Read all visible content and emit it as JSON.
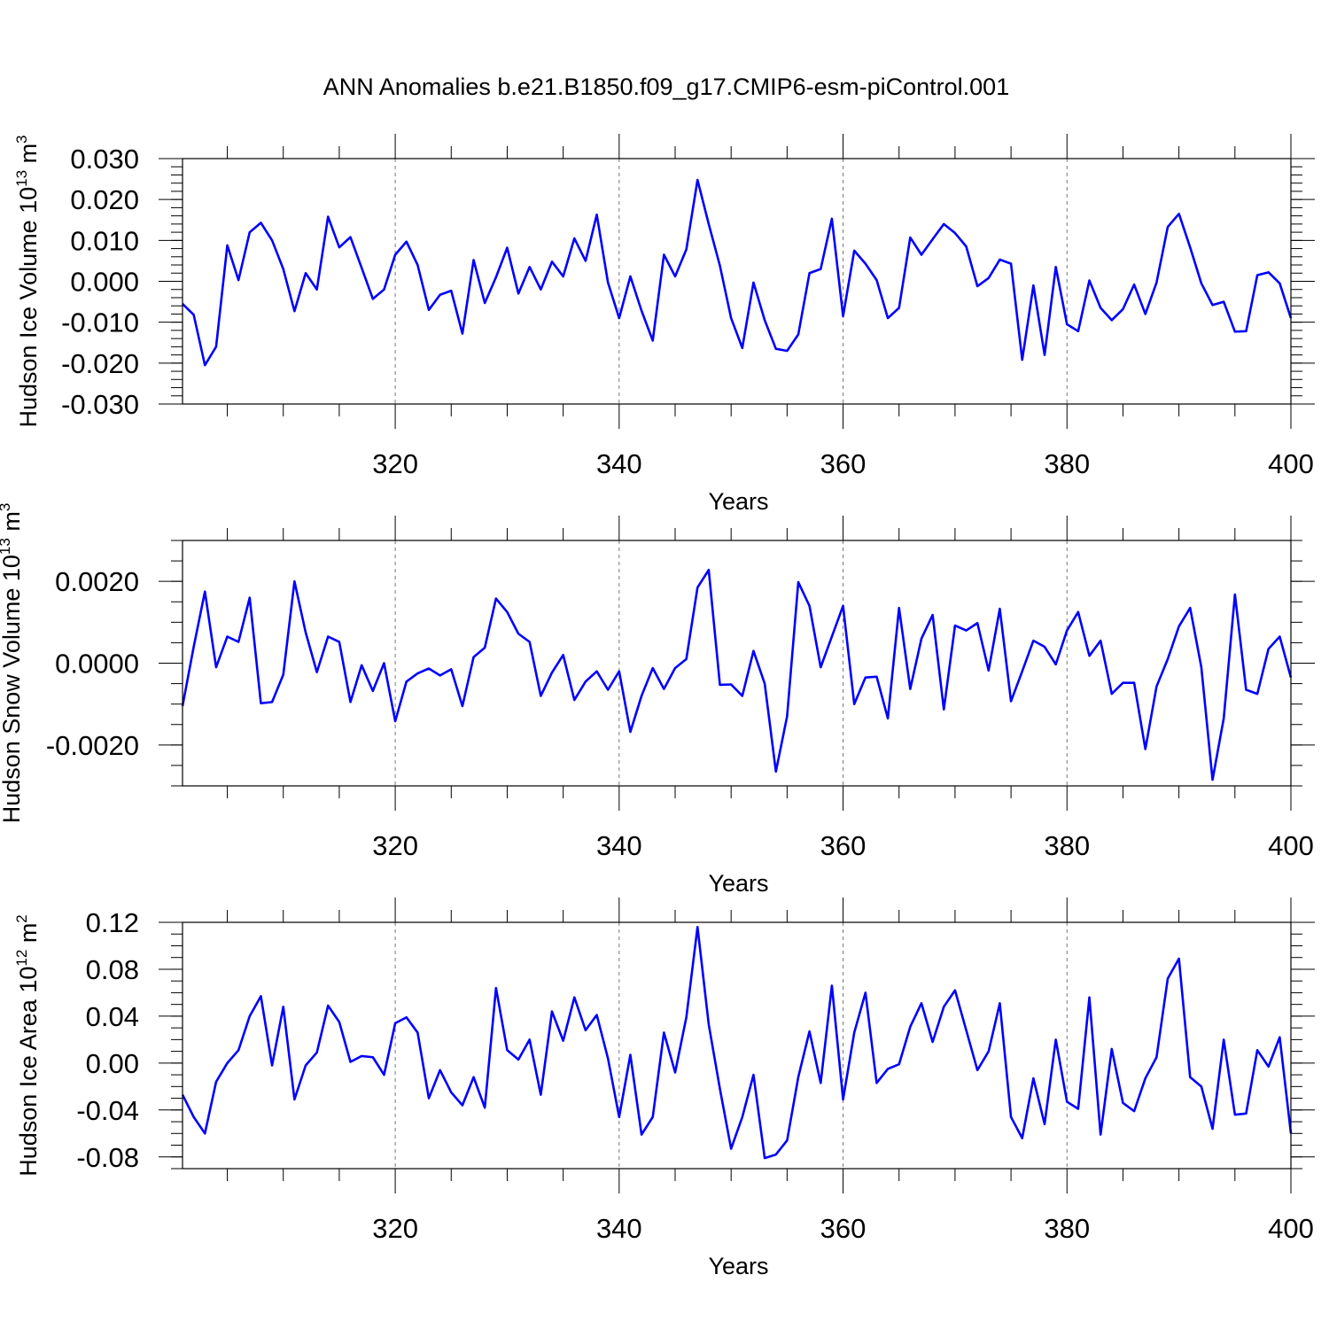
{
  "title": "ANN Anomalies b.e21.B1850.f09_g17.CMIP6-esm-piControl.001",
  "line_color": "#0000ff",
  "chart_data": [
    {
      "type": "line",
      "ylabel_main": "Hudson Ice Volume 10",
      "ylabel_exp": "13",
      "ylabel_unit": " m",
      "ylabel_unit_exp": "3",
      "xlabel": "Years",
      "xlim": [
        301,
        400
      ],
      "ylim": [
        -0.03,
        0.03
      ],
      "yticks": [
        -0.03,
        -0.02,
        -0.01,
        0.0,
        0.01,
        0.02,
        0.03
      ],
      "ytick_labels": [
        "-0.030",
        "-0.020",
        "-0.010",
        "0.000",
        "0.010",
        "0.020",
        "0.030"
      ],
      "yminor": 0.002,
      "xticks": [
        320,
        340,
        360,
        380,
        400
      ],
      "xtick_labels": [
        "320",
        "340",
        "360",
        "380",
        "400"
      ],
      "x_start": 301,
      "values": [
        -0.0055,
        -0.0082,
        -0.0205,
        -0.016,
        0.0088,
        0.0003,
        0.012,
        0.0143,
        0.01,
        0.003,
        -0.0073,
        0.002,
        -0.002,
        0.0158,
        0.0083,
        0.0108,
        0.0033,
        -0.0043,
        -0.002,
        0.0065,
        0.0097,
        0.004,
        -0.007,
        -0.0033,
        -0.0023,
        -0.0128,
        0.0052,
        -0.0053,
        0.001,
        0.0082,
        -0.003,
        0.0035,
        -0.002,
        0.0048,
        0.0012,
        0.0105,
        0.005,
        0.0163,
        -0.0003,
        -0.009,
        0.0012,
        -0.0072,
        -0.0145,
        0.0065,
        0.0012,
        0.0078,
        0.0248,
        0.014,
        0.0038,
        -0.009,
        -0.0163,
        -0.0003,
        -0.0095,
        -0.0165,
        -0.017,
        -0.013,
        0.002,
        0.003,
        0.0153,
        -0.0085,
        0.0075,
        0.0043,
        0.0003,
        -0.009,
        -0.0065,
        0.0107,
        0.0065,
        0.0103,
        0.014,
        0.0118,
        0.0085,
        -0.0012,
        0.0008,
        0.0053,
        0.0043,
        -0.0192,
        -0.001,
        -0.018,
        0.0035,
        -0.0105,
        -0.0122,
        0.0002,
        -0.0065,
        -0.0095,
        -0.0068,
        -0.0008,
        -0.008,
        -0.0003,
        0.0133,
        0.0165,
        0.0083,
        -0.0005,
        -0.0058,
        -0.005,
        -0.0123,
        -0.0122,
        0.0015,
        0.0022,
        -0.0005,
        -0.009
      ]
    },
    {
      "type": "line",
      "ylabel_main": "Hudson Snow Volume 10",
      "ylabel_exp": "13",
      "ylabel_unit": " m",
      "ylabel_unit_exp": "3",
      "xlabel": "Years",
      "xlim": [
        301,
        400
      ],
      "ylim": [
        -0.003,
        0.003
      ],
      "yticks": [
        -0.002,
        0.0,
        0.002
      ],
      "ytick_labels": [
        "-0.0020",
        "0.0000",
        "0.0020"
      ],
      "yminor": 0.0005,
      "xticks": [
        320,
        340,
        360,
        380,
        400
      ],
      "xtick_labels": [
        "320",
        "340",
        "360",
        "380",
        "400"
      ],
      "x_start": 301,
      "values": [
        -0.00105,
        0.0004,
        0.00175,
        -0.0001,
        0.00065,
        0.00052,
        0.0016,
        -0.00098,
        -0.00095,
        -0.00028,
        0.002,
        0.00075,
        -0.00022,
        0.00065,
        0.00052,
        -0.00095,
        -5e-05,
        -0.00068,
        0.0,
        -0.00142,
        -0.00045,
        -0.00025,
        -0.00013,
        -0.0003,
        -0.00015,
        -0.00105,
        0.00015,
        0.00038,
        0.00158,
        0.00125,
        0.00072,
        0.00052,
        -0.0008,
        -0.00023,
        0.0002,
        -0.0009,
        -0.00045,
        -0.0002,
        -0.00065,
        -0.0002,
        -0.00168,
        -0.0008,
        -0.00012,
        -0.00063,
        -0.00012,
        0.0001,
        0.00185,
        0.00228,
        -0.00053,
        -0.00052,
        -0.0008,
        0.0003,
        -0.0005,
        -0.00265,
        -0.0013,
        0.00198,
        0.0014,
        -0.0001,
        0.00065,
        0.0014,
        -0.001,
        -0.00035,
        -0.00033,
        -0.00135,
        0.00135,
        -0.00063,
        0.0006,
        0.00118,
        -0.00113,
        0.00092,
        0.0008,
        0.00098,
        -0.00018,
        0.00133,
        -0.00093,
        -0.0002,
        0.00055,
        0.0004,
        -3e-05,
        0.0008,
        0.00125,
        0.00018,
        0.00055,
        -0.00075,
        -0.00048,
        -0.00048,
        -0.0021,
        -0.00057,
        0.0001,
        0.0009,
        0.00135,
        -0.0001,
        -0.00285,
        -0.00135,
        0.00168,
        -0.00065,
        -0.00075,
        0.00035,
        0.00065,
        -0.00035
      ]
    },
    {
      "type": "line",
      "ylabel_main": "Hudson Ice Area 10",
      "ylabel_exp": "12",
      "ylabel_unit": " m",
      "ylabel_unit_exp": "2",
      "xlabel": "Years",
      "xlim": [
        301,
        400
      ],
      "ylim": [
        -0.09,
        0.12
      ],
      "yticks": [
        -0.08,
        -0.04,
        0.0,
        0.04,
        0.08,
        0.12
      ],
      "ytick_labels": [
        "-0.08",
        "-0.04",
        "0.00",
        "0.04",
        "0.08",
        "0.12"
      ],
      "yminor": 0.01,
      "xticks": [
        320,
        340,
        360,
        380,
        400
      ],
      "xtick_labels": [
        "320",
        "340",
        "360",
        "380",
        "400"
      ],
      "x_start": 301,
      "values": [
        -0.027,
        -0.046,
        -0.06,
        -0.016,
        0.0,
        0.011,
        0.04,
        0.057,
        -0.002,
        0.048,
        -0.031,
        -0.002,
        0.009,
        0.049,
        0.035,
        0.001,
        0.006,
        0.005,
        -0.01,
        0.034,
        0.039,
        0.026,
        -0.03,
        -0.006,
        -0.025,
        -0.036,
        -0.012,
        -0.038,
        0.064,
        0.011,
        0.003,
        0.02,
        -0.027,
        0.044,
        0.019,
        0.056,
        0.028,
        0.041,
        0.004,
        -0.046,
        0.007,
        -0.061,
        -0.046,
        0.026,
        -0.008,
        0.039,
        0.116,
        0.033,
        -0.022,
        -0.073,
        -0.046,
        -0.01,
        -0.081,
        -0.078,
        -0.066,
        -0.012,
        0.027,
        -0.017,
        0.066,
        -0.031,
        0.026,
        0.06,
        -0.017,
        -0.005,
        -0.001,
        0.031,
        0.051,
        0.018,
        0.048,
        0.062,
        0.028,
        -0.006,
        0.01,
        0.051,
        -0.046,
        -0.064,
        -0.013,
        -0.052,
        0.02,
        -0.033,
        -0.039,
        0.056,
        -0.061,
        0.012,
        -0.034,
        -0.041,
        -0.013,
        0.005,
        0.072,
        0.089,
        -0.012,
        -0.02,
        -0.056,
        0.02,
        -0.044,
        -0.043,
        0.011,
        -0.003,
        0.022,
        -0.06
      ]
    }
  ]
}
